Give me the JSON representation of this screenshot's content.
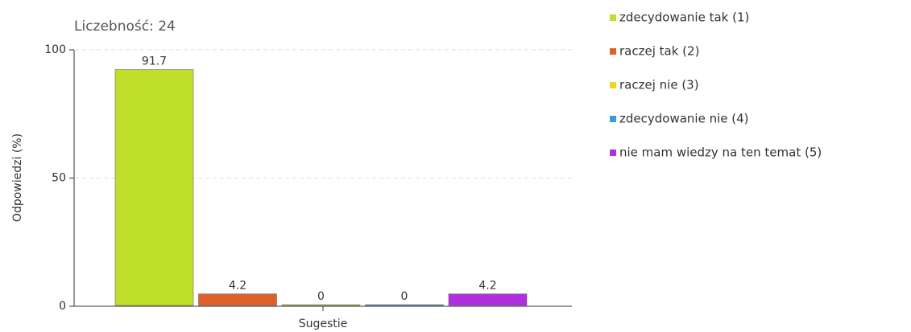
{
  "chart_data": {
    "type": "bar",
    "title": "Liczebność: 24",
    "y_label": "Odpowiedzi (%)",
    "categories": [
      "Sugestie"
    ],
    "series": [
      {
        "name": "zdecydowanie tak (1)",
        "color": "#bfdf2a",
        "values": [
          91.7
        ]
      },
      {
        "name": "raczej tak (2)",
        "color": "#e0602a",
        "values": [
          4.2
        ]
      },
      {
        "name": "raczej nie (3)",
        "color": "#e8d820",
        "values": [
          0
        ]
      },
      {
        "name": "zdecydowanie nie (4)",
        "color": "#3a9ae0",
        "values": [
          0
        ]
      },
      {
        "name": "nie mam wiedzy na ten temat (5)",
        "color": "#b030e0",
        "values": [
          4.2
        ]
      }
    ],
    "ylim": [
      0,
      100
    ],
    "yticks": [
      0,
      50,
      100
    ],
    "grid": true,
    "legend": "right"
  }
}
